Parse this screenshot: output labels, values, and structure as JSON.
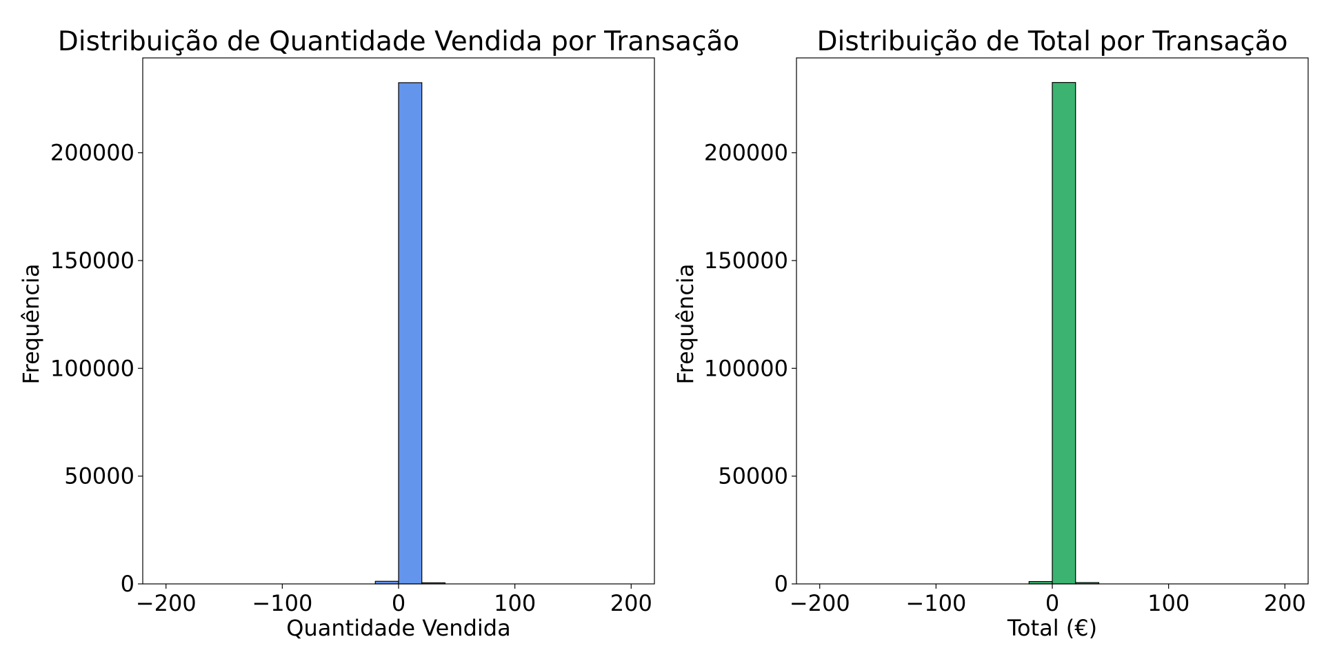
{
  "chart_data": [
    {
      "type": "bar",
      "title": "Distribuição de Quantidade Vendida por Transação",
      "xlabel": "Quantidade Vendida",
      "ylabel": "Frequência",
      "xlim": [
        -220,
        220
      ],
      "ylim": [
        0,
        244000
      ],
      "xticks": [
        -200,
        -100,
        0,
        100,
        200
      ],
      "xtick_labels": [
        "−200",
        "−100",
        "0",
        "100",
        "200"
      ],
      "yticks": [
        0,
        50000,
        100000,
        150000,
        200000
      ],
      "ytick_labels": [
        "0",
        "50000",
        "100000",
        "150000",
        "200000"
      ],
      "bar_color": "#6495ED",
      "edge_color": "#000000",
      "bins": [
        {
          "x0": -20,
          "x1": 0,
          "value": 1200
        },
        {
          "x0": 0,
          "x1": 20,
          "value": 232500
        },
        {
          "x0": 20,
          "x1": 40,
          "value": 500
        }
      ],
      "grid": false,
      "legend": "none"
    },
    {
      "type": "bar",
      "title": "Distribuição de Total por Transação",
      "xlabel": "Total (€)",
      "ylabel": "Frequência",
      "xlim": [
        -220,
        220
      ],
      "ylim": [
        0,
        244000
      ],
      "xticks": [
        -200,
        -100,
        0,
        100,
        200
      ],
      "xtick_labels": [
        "−200",
        "−100",
        "0",
        "100",
        "200"
      ],
      "yticks": [
        0,
        50000,
        100000,
        150000,
        200000
      ],
      "ytick_labels": [
        "0",
        "50000",
        "100000",
        "150000",
        "200000"
      ],
      "bar_color": "#3CB371",
      "edge_color": "#000000",
      "bins": [
        {
          "x0": -20,
          "x1": 0,
          "value": 1100
        },
        {
          "x0": 0,
          "x1": 20,
          "value": 232600
        },
        {
          "x0": 20,
          "x1": 40,
          "value": 600
        }
      ],
      "grid": false,
      "legend": "none"
    }
  ]
}
